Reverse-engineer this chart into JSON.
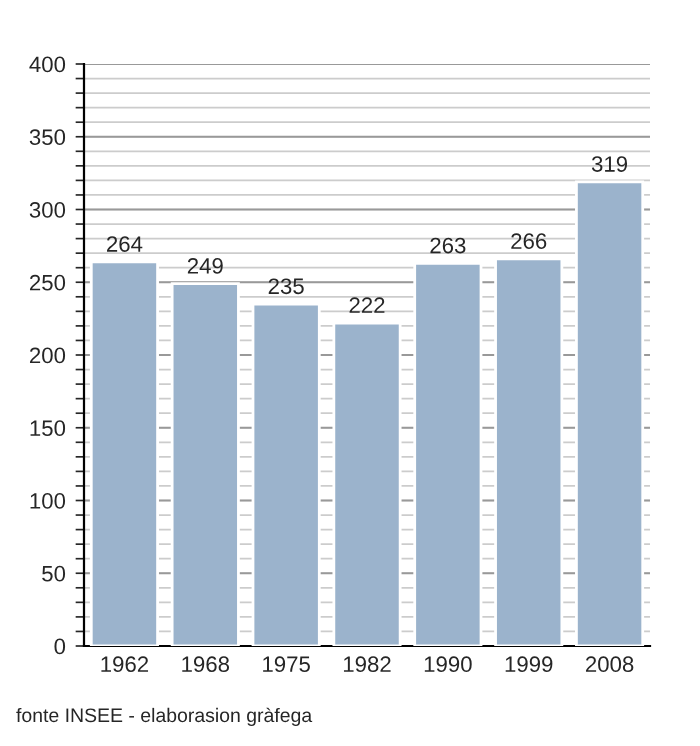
{
  "chart_data": {
    "type": "bar",
    "categories": [
      "1962",
      "1968",
      "1975",
      "1982",
      "1990",
      "1999",
      "2008"
    ],
    "values": [
      264,
      249,
      235,
      222,
      263,
      266,
      319
    ],
    "color": "#9bb3cc",
    "data_labels": true,
    "ylim": [
      0,
      400
    ],
    "yticks": [
      0,
      {
        "value": 10,
        "label": null
      },
      {
        "value": 20,
        "label": null
      },
      {
        "value": 30,
        "label": null
      },
      {
        "value": 40,
        "label": null
      },
      50,
      {
        "value": 60,
        "label": null
      },
      {
        "value": 70,
        "label": null
      },
      {
        "value": 80,
        "label": null
      },
      {
        "value": 90,
        "label": null
      },
      100,
      {
        "value": 110,
        "label": null
      },
      {
        "value": 120,
        "label": null
      },
      {
        "value": 130,
        "label": null
      },
      {
        "value": 140,
        "label": null
      },
      150,
      {
        "value": 160,
        "label": null
      },
      {
        "value": 170,
        "label": null
      },
      {
        "value": 180,
        "label": null
      },
      {
        "value": 190,
        "label": null
      },
      200,
      {
        "value": 210,
        "label": null
      },
      {
        "value": 220,
        "label": null
      },
      {
        "value": 230,
        "label": null
      },
      {
        "value": 240,
        "label": null
      },
      250,
      {
        "value": 260,
        "label": null
      },
      {
        "value": 270,
        "label": null
      },
      {
        "value": 280,
        "label": null
      },
      {
        "value": 290,
        "label": null
      },
      300,
      {
        "value": 310,
        "label": null
      },
      {
        "value": 320,
        "label": null
      },
      {
        "value": 330,
        "label": null
      },
      {
        "value": 340,
        "label": null
      },
      350,
      {
        "value": 360,
        "label": null
      },
      {
        "value": 370,
        "label": null
      },
      {
        "value": 380,
        "label": null
      },
      {
        "value": 390,
        "label": null
      },
      400
    ],
    "grid": "y",
    "annotations": [
      "fonte INSEE - elaborasion gràfega"
    ]
  }
}
